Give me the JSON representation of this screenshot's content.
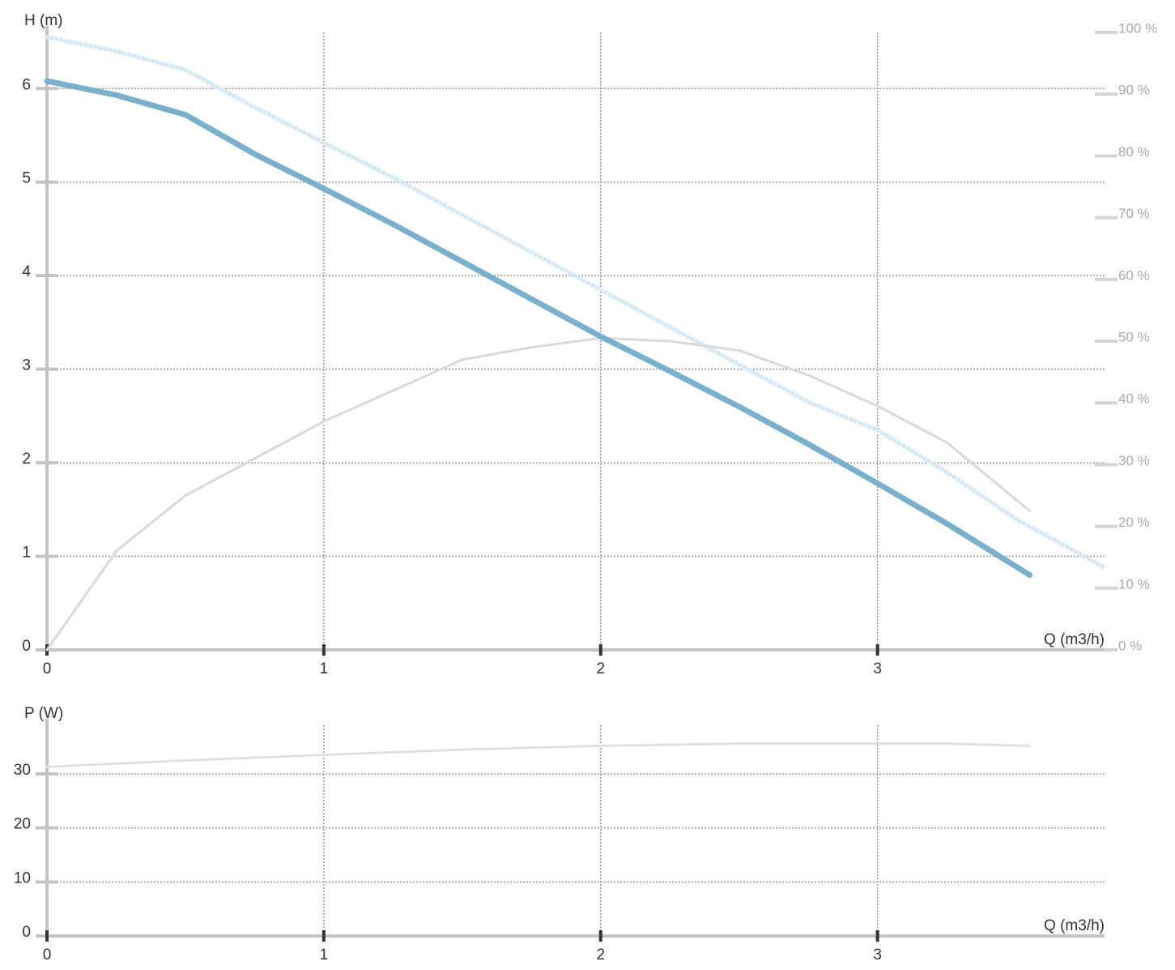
{
  "chart_data": [
    {
      "type": "line",
      "y_label": "H (m)",
      "x_label": "Q (m3/h)",
      "xlim": [
        0,
        3.82
      ],
      "xticks": [
        0,
        1,
        2,
        3
      ],
      "ylim": [
        0,
        6.6
      ],
      "yticks": [
        0,
        1,
        2,
        3,
        4,
        5,
        6
      ],
      "y2lim": [
        0,
        100
      ],
      "y2ticks": [
        {
          "value": 0,
          "label": "0 %"
        },
        {
          "value": 10,
          "label": "10 %"
        },
        {
          "value": 20,
          "label": "20 %"
        },
        {
          "value": 30,
          "label": "30 %"
        },
        {
          "value": 40,
          "label": "40 %"
        },
        {
          "value": 50,
          "label": "50 %"
        },
        {
          "value": 60,
          "label": "60 %"
        },
        {
          "value": 70,
          "label": "70 %"
        },
        {
          "value": 80,
          "label": "80 %"
        },
        {
          "value": 90,
          "label": "90 %"
        },
        {
          "value": 100,
          "label": "100 %"
        }
      ],
      "grid": true,
      "series": [
        {
          "color": "#d6e9f6",
          "style": "dotted",
          "x": [
            0,
            0.25,
            0.5,
            0.75,
            1,
            1.25,
            1.5,
            1.75,
            2,
            2.25,
            2.5,
            2.75,
            3,
            3.25,
            3.5,
            3.82
          ],
          "values": [
            6.55,
            6.4,
            6.2,
            5.8,
            5.42,
            5.05,
            4.65,
            4.25,
            3.85,
            3.45,
            3.05,
            2.65,
            2.35,
            1.9,
            1.4,
            0.88
          ]
        },
        {
          "color": "#d9d9d9",
          "style": "solid",
          "axis": "y2",
          "x": [
            0,
            0.25,
            0.5,
            0.75,
            1,
            1.25,
            1.5,
            1.75,
            2,
            2.25,
            2.5,
            2.75,
            3,
            3.25,
            3.55
          ],
          "values": [
            0,
            16,
            25,
            31,
            37,
            42,
            47,
            49,
            50.5,
            50,
            48.5,
            44.5,
            39.5,
            33.6,
            22.5
          ]
        },
        {
          "color": "#7ab0cc",
          "style": "solid",
          "x": [
            0,
            0.25,
            0.5,
            0.75,
            1,
            1.25,
            1.5,
            1.75,
            2,
            2.25,
            2.5,
            2.75,
            3,
            3.25,
            3.55
          ],
          "values": [
            6.08,
            5.93,
            5.72,
            5.3,
            4.93,
            4.55,
            4.15,
            3.75,
            3.35,
            2.98,
            2.6,
            2.2,
            1.78,
            1.35,
            0.8
          ]
        }
      ]
    },
    {
      "type": "line",
      "y_label": "P (W)",
      "x_label": "Q (m3/h)",
      "xlim": [
        0,
        3.82
      ],
      "xticks": [
        0,
        1,
        2,
        3
      ],
      "ylim": [
        0,
        39
      ],
      "yticks": [
        0,
        10,
        20,
        30
      ],
      "grid": true,
      "series": [
        {
          "color": "#e0e0e0",
          "style": "solid",
          "x": [
            0,
            0.5,
            1,
            1.5,
            2,
            2.5,
            3,
            3.25,
            3.55
          ],
          "values": [
            31.3,
            32.5,
            33.5,
            34.5,
            35.2,
            35.6,
            35.6,
            35.6,
            35.2
          ]
        }
      ]
    }
  ]
}
